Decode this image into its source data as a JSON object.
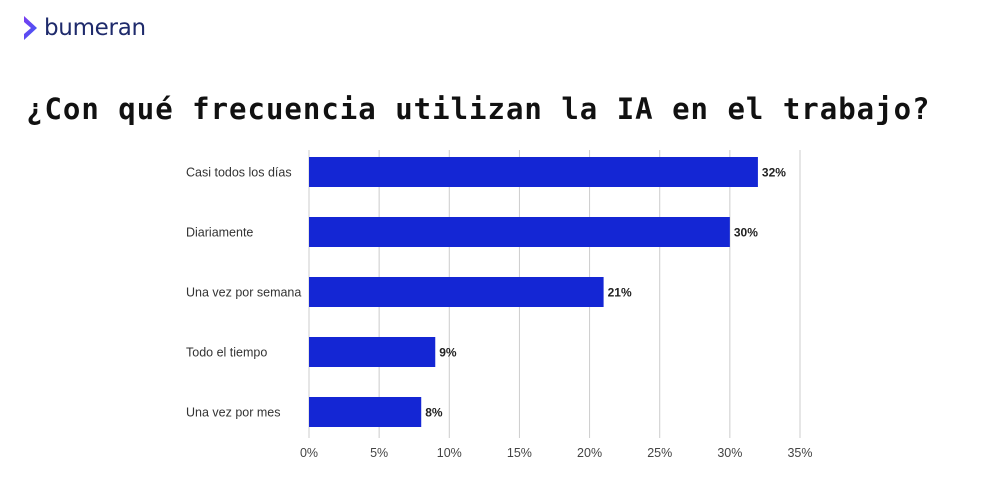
{
  "brand": {
    "name": "bumeran",
    "logo_color": "#5a3cf0",
    "text_color": "#1e2a6b"
  },
  "chart_data": {
    "type": "bar",
    "orientation": "horizontal",
    "title": "¿Con qué frecuencia utilizan la IA en el trabajo?",
    "categories": [
      "Casi todos los días",
      "Diariamente",
      "Una vez por semana",
      "Todo el tiempo",
      "Una vez por mes"
    ],
    "values": [
      32,
      30,
      21,
      9,
      8
    ],
    "data_labels": [
      "32%",
      "30%",
      "21%",
      "9%",
      "8%"
    ],
    "xlim": [
      0,
      35
    ],
    "ticks": [
      0,
      5,
      10,
      15,
      20,
      25,
      30,
      35
    ],
    "tick_labels": [
      "0%",
      "5%",
      "10%",
      "15%",
      "20%",
      "25%",
      "30%",
      "35%"
    ],
    "unit": "%",
    "bar_color": "#1426d4",
    "grid": true,
    "legend": "none"
  }
}
